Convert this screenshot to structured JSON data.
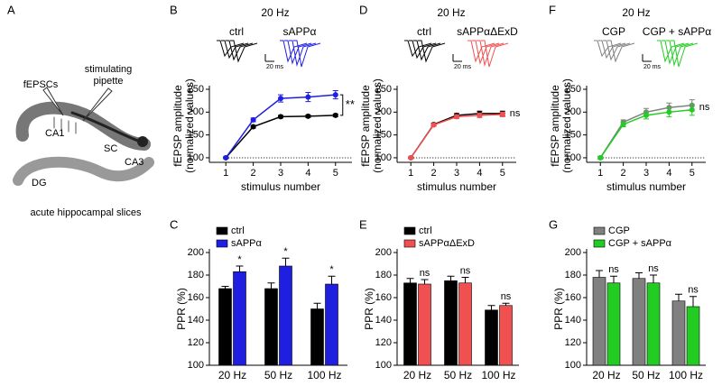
{
  "panel_a": {
    "panel": "A",
    "labels": {
      "recording": "fEPSCs",
      "pipette": [
        "stimulating",
        "pipette"
      ],
      "ca1": "CA1",
      "sc": "SC",
      "ca3": "CA3",
      "dg": "DG"
    },
    "caption": "acute hippocampal slices"
  },
  "chart_data": [
    {
      "type": "line",
      "panel": "B",
      "title": "20 Hz",
      "scale_label": "20 ms",
      "xlabel": "stimulus number",
      "ylabel": [
        "fEPSP amplitude",
        "(normalized values)"
      ],
      "x": [
        1,
        2,
        3,
        4,
        5
      ],
      "xlim": [
        0.4,
        5.6
      ],
      "xticks": [
        1,
        2,
        3,
        4,
        5
      ],
      "ylim": [
        90,
        250
      ],
      "yticks": [
        100,
        150,
        200,
        250
      ],
      "reference_line": 100,
      "legend": "top",
      "annotation": "**",
      "series": [
        {
          "name": "ctrl",
          "color": "#000000",
          "values": [
            100,
            168,
            190,
            191,
            193
          ],
          "errors": [
            2,
            3,
            3,
            3,
            3
          ]
        },
        {
          "name": "sAPPα",
          "color": "#1f1fe0",
          "values": [
            100,
            183,
            230,
            233,
            238
          ],
          "errors": [
            2,
            4,
            8,
            10,
            9
          ]
        }
      ]
    },
    {
      "type": "line",
      "panel": "D",
      "title": "20 Hz",
      "scale_label": "20 ms",
      "xlabel": "stimulus number",
      "ylabel": [
        "fEPSP amplitude",
        "(normalized values)"
      ],
      "x": [
        1,
        2,
        3,
        4,
        5
      ],
      "xlim": [
        0.4,
        5.6
      ],
      "xticks": [
        1,
        2,
        3,
        4,
        5
      ],
      "ylim": [
        90,
        250
      ],
      "yticks": [
        100,
        150,
        200,
        250
      ],
      "reference_line": 100,
      "legend": "top",
      "annotation": "ns",
      "series": [
        {
          "name": "ctrl",
          "color": "#000000",
          "values": [
            100,
            173,
            193,
            197,
            197
          ],
          "errors": [
            2,
            3,
            4,
            5,
            5
          ]
        },
        {
          "name": "sAPPαΔExD",
          "color": "#f05050",
          "values": [
            100,
            172,
            190,
            193,
            195
          ],
          "errors": [
            2,
            3,
            4,
            5,
            5
          ]
        }
      ]
    },
    {
      "type": "line",
      "panel": "F",
      "title": "20 Hz",
      "scale_label": "20 ms",
      "xlabel": "stimulus number",
      "ylabel": [
        "fEPSP amplitude",
        "(normalized values)"
      ],
      "x": [
        1,
        2,
        3,
        4,
        5
      ],
      "xlim": [
        0.4,
        5.6
      ],
      "xticks": [
        1,
        2,
        3,
        4,
        5
      ],
      "ylim": [
        90,
        250
      ],
      "yticks": [
        100,
        150,
        200,
        250
      ],
      "reference_line": 100,
      "legend": "top",
      "annotation": "ns",
      "series": [
        {
          "name": "CGP",
          "color": "#808080",
          "values": [
            100,
            178,
            200,
            210,
            215
          ],
          "errors": [
            3,
            5,
            8,
            10,
            12
          ]
        },
        {
          "name": "CGP + sAPPα",
          "color": "#22cc22",
          "values": [
            100,
            173,
            193,
            200,
            205
          ],
          "errors": [
            3,
            5,
            8,
            10,
            12
          ]
        }
      ]
    },
    {
      "type": "bar",
      "panel": "C",
      "ylabel": "PPR (%)",
      "categories": [
        "20 Hz",
        "50 Hz",
        "100 Hz"
      ],
      "ylim": [
        100,
        200
      ],
      "yticks": [
        100,
        120,
        140,
        160,
        180,
        200
      ],
      "legend": "top-left",
      "bar_annotations": [
        "*",
        "*",
        "*"
      ],
      "series": [
        {
          "name": "ctrl",
          "color": "#000000",
          "values": [
            168,
            168,
            150
          ],
          "errors": [
            2,
            5,
            5
          ]
        },
        {
          "name": "sAPPα",
          "color": "#1f1fe0",
          "values": [
            183,
            188,
            172
          ],
          "errors": [
            5,
            7,
            7
          ]
        }
      ]
    },
    {
      "type": "bar",
      "panel": "E",
      "ylabel": "PPR (%)",
      "categories": [
        "20 Hz",
        "50 Hz",
        "100 Hz"
      ],
      "ylim": [
        100,
        200
      ],
      "yticks": [
        100,
        120,
        140,
        160,
        180,
        200
      ],
      "legend": "top-left",
      "bar_annotations": [
        "ns",
        "ns",
        "ns"
      ],
      "series": [
        {
          "name": "ctrl",
          "color": "#000000",
          "values": [
            173,
            175,
            149
          ],
          "errors": [
            4,
            4,
            4
          ]
        },
        {
          "name": "sAPPαΔExD",
          "color": "#f05050",
          "values": [
            172,
            173,
            153
          ],
          "errors": [
            4,
            5,
            2
          ]
        }
      ]
    },
    {
      "type": "bar",
      "panel": "G",
      "ylabel": "PPR (%)",
      "categories": [
        "20 Hz",
        "50 Hz",
        "100 Hz"
      ],
      "ylim": [
        100,
        200
      ],
      "yticks": [
        100,
        120,
        140,
        160,
        180,
        200
      ],
      "legend": "top-left",
      "bar_annotations": [
        "ns",
        "ns",
        "ns"
      ],
      "series": [
        {
          "name": "CGP",
          "color": "#808080",
          "values": [
            178,
            177,
            157
          ],
          "errors": [
            6,
            5,
            6
          ]
        },
        {
          "name": "CGP + sAPPα",
          "color": "#22cc22",
          "values": [
            173,
            173,
            152
          ],
          "errors": [
            6,
            7,
            9
          ]
        }
      ]
    }
  ]
}
